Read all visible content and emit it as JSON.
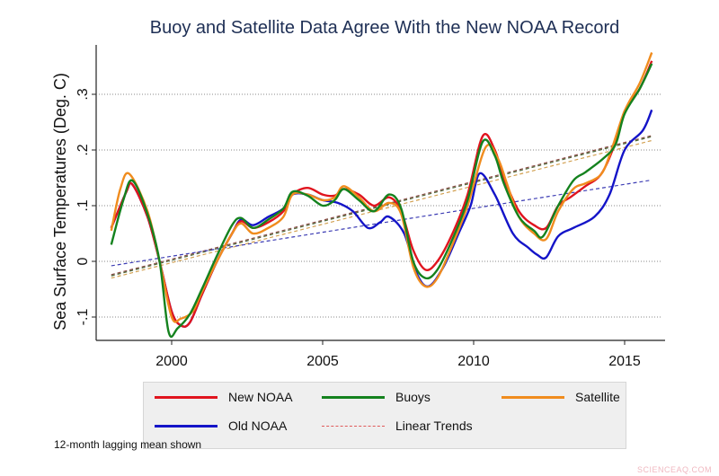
{
  "chart_data": {
    "type": "line",
    "title": "Buoy and Satellite Data Agree With the New NOAA Record",
    "xlabel": "",
    "ylabel": "Sea Surface Temperatures (Deg. C)",
    "xlim": [
      1997.5,
      2016.1
    ],
    "ylim": [
      -0.143,
      0.39
    ],
    "xticks": [
      2000,
      2005,
      2010,
      2015
    ],
    "xtick_labels": [
      "2000",
      "2005",
      "2010",
      "2015"
    ],
    "yticks": [
      -0.1,
      0,
      0.1,
      0.2,
      0.3
    ],
    "ytick_labels": [
      "-.1",
      "0",
      ".1",
      ".2",
      ".3"
    ],
    "grid": "horizontal dotted at y ticks",
    "legend_placement": "bottom",
    "series": [
      {
        "name": "New NOAA",
        "color": "#e0141e",
        "style": "solid",
        "x": [
          1998.0,
          1998.5,
          1998.7,
          1999.2,
          1999.6,
          2000.0,
          2000.3,
          2000.6,
          2001.0,
          2001.5,
          2002.0,
          2002.3,
          2002.7,
          2003.2,
          2003.7,
          2004.0,
          2004.5,
          2005.0,
          2005.4,
          2005.7,
          2006.2,
          2006.7,
          2007.2,
          2007.6,
          2008.0,
          2008.4,
          2008.8,
          2009.3,
          2009.8,
          2010.3,
          2010.7,
          2011.0,
          2011.5,
          2012.0,
          2012.4,
          2012.8,
          2013.2,
          2013.7,
          2014.2,
          2014.6,
          2015.0,
          2015.5,
          2015.9
        ],
        "y": [
          0.06,
          0.125,
          0.138,
          0.08,
          0.0,
          -0.09,
          -0.115,
          -0.11,
          -0.06,
          0.0,
          0.05,
          0.072,
          0.06,
          0.07,
          0.09,
          0.12,
          0.132,
          0.12,
          0.118,
          0.13,
          0.12,
          0.1,
          0.115,
          0.09,
          0.02,
          -0.015,
          0.0,
          0.05,
          0.12,
          0.225,
          0.2,
          0.15,
          0.09,
          0.065,
          0.06,
          0.1,
          0.115,
          0.135,
          0.155,
          0.2,
          0.27,
          0.31,
          0.36
        ]
      },
      {
        "name": "Old NOAA",
        "color": "#1414c8",
        "style": "solid",
        "x": [
          1998.0,
          1998.5,
          1998.7,
          1999.2,
          1999.6,
          2000.0,
          2000.3,
          2000.6,
          2001.0,
          2001.5,
          2002.0,
          2002.3,
          2002.7,
          2003.2,
          2003.7,
          2004.0,
          2004.5,
          2005.0,
          2005.5,
          2006.0,
          2006.5,
          2006.9,
          2007.2,
          2007.7,
          2008.1,
          2008.5,
          2009.0,
          2009.5,
          2009.9,
          2010.2,
          2010.7,
          2011.3,
          2011.8,
          2012.1,
          2012.4,
          2012.8,
          2013.3,
          2014.0,
          2014.5,
          2015.0,
          2015.6,
          2015.9
        ],
        "y": [
          0.06,
          0.125,
          0.138,
          0.08,
          0.0,
          -0.09,
          -0.115,
          -0.11,
          -0.06,
          0.0,
          0.05,
          0.075,
          0.065,
          0.08,
          0.095,
          0.12,
          0.12,
          0.11,
          0.105,
          0.09,
          0.06,
          0.07,
          0.08,
          0.05,
          -0.02,
          -0.045,
          -0.01,
          0.05,
          0.1,
          0.158,
          0.12,
          0.05,
          0.025,
          0.012,
          0.007,
          0.045,
          0.06,
          0.08,
          0.12,
          0.2,
          0.235,
          0.272
        ]
      },
      {
        "name": "Buoys",
        "color": "#14821e",
        "style": "solid",
        "x": [
          1998.0,
          1998.4,
          1998.7,
          1999.2,
          1999.6,
          1999.9,
          2000.2,
          2000.6,
          2001.0,
          2001.5,
          2002.0,
          2002.3,
          2002.7,
          2003.2,
          2003.7,
          2004.0,
          2004.5,
          2005.0,
          2005.4,
          2005.7,
          2006.2,
          2006.7,
          2007.2,
          2007.6,
          2008.0,
          2008.4,
          2008.8,
          2009.3,
          2009.8,
          2010.3,
          2010.7,
          2011.0,
          2011.5,
          2012.0,
          2012.3,
          2012.8,
          2013.3,
          2013.7,
          2014.3,
          2014.7,
          2015.0,
          2015.5,
          2015.9
        ],
        "y": [
          0.03,
          0.11,
          0.145,
          0.085,
          0.0,
          -0.127,
          -0.12,
          -0.095,
          -0.05,
          0.01,
          0.065,
          0.078,
          0.06,
          0.075,
          0.095,
          0.125,
          0.118,
          0.1,
          0.11,
          0.13,
          0.11,
          0.09,
          0.12,
          0.095,
          0.0,
          -0.03,
          -0.015,
          0.04,
          0.11,
          0.215,
          0.19,
          0.14,
          0.08,
          0.055,
          0.045,
          0.1,
          0.145,
          0.16,
          0.185,
          0.21,
          0.265,
          0.31,
          0.355
        ]
      },
      {
        "name": "Satellite",
        "color": "#f08c1e",
        "style": "solid",
        "x": [
          1998.0,
          1998.3,
          1998.6,
          1999.2,
          1999.6,
          2000.0,
          2000.3,
          2000.7,
          2001.0,
          2001.5,
          2002.0,
          2002.3,
          2002.7,
          2003.2,
          2003.7,
          2004.0,
          2004.5,
          2005.0,
          2005.4,
          2005.7,
          2006.2,
          2006.7,
          2007.2,
          2007.6,
          2008.0,
          2008.4,
          2008.8,
          2009.3,
          2009.8,
          2010.4,
          2010.8,
          2011.1,
          2011.5,
          2012.0,
          2012.4,
          2012.8,
          2013.3,
          2013.7,
          2014.2,
          2014.5,
          2015.0,
          2015.5,
          2015.9
        ],
        "y": [
          0.055,
          0.13,
          0.157,
          0.09,
          0.0,
          -0.1,
          -0.103,
          -0.09,
          -0.055,
          0.0,
          0.05,
          0.068,
          0.05,
          0.06,
          0.08,
          0.12,
          0.12,
          0.11,
          0.115,
          0.135,
          0.115,
          0.09,
          0.105,
          0.085,
          -0.01,
          -0.045,
          -0.03,
          0.03,
          0.1,
          0.205,
          0.185,
          0.14,
          0.08,
          0.05,
          0.04,
          0.09,
          0.13,
          0.14,
          0.155,
          0.19,
          0.27,
          0.32,
          0.375
        ]
      },
      {
        "name": "Linear Trends",
        "color": "#e05a5a",
        "style": "dashed"
      }
    ],
    "trends": [
      {
        "of": "New NOAA",
        "color": "#8c4a46",
        "x": [
          1998.0,
          2015.9
        ],
        "y": [
          -0.024,
          0.226
        ]
      },
      {
        "of": "Buoys",
        "color": "#4e6a3a",
        "x": [
          1998.0,
          2015.9
        ],
        "y": [
          -0.026,
          0.224
        ]
      },
      {
        "of": "Satellite",
        "color": "#d2a050",
        "x": [
          1998.0,
          2015.9
        ],
        "y": [
          -0.03,
          0.217
        ]
      },
      {
        "of": "Old NOAA",
        "color": "#3c3cb4",
        "x": [
          1998.0,
          2015.9
        ],
        "y": [
          -0.008,
          0.146
        ]
      }
    ],
    "note": "12-month lagging mean shown"
  },
  "legend": {
    "items": [
      {
        "label": "New NOAA",
        "color": "#e0141e",
        "style": "solid"
      },
      {
        "label": "Buoys",
        "color": "#14821e",
        "style": "solid"
      },
      {
        "label": "Satellite",
        "color": "#f08c1e",
        "style": "solid"
      },
      {
        "label": "Old NOAA",
        "color": "#1414c8",
        "style": "solid"
      },
      {
        "label": "Linear Trends",
        "color": "#e05a5a",
        "style": "dashed"
      }
    ]
  },
  "watermark": "SCIENCEAQ.COM"
}
